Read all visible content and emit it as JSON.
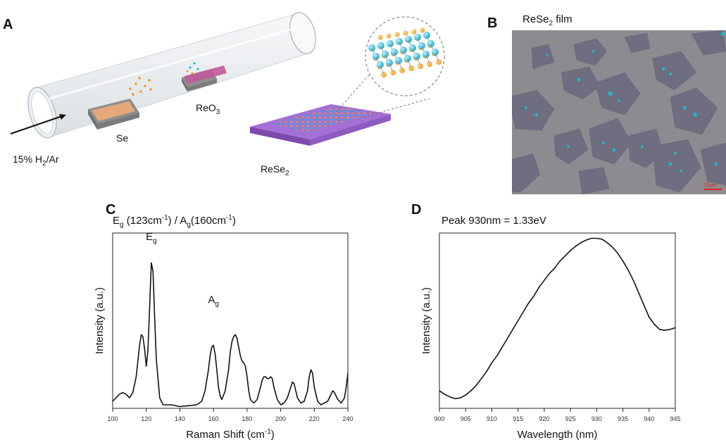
{
  "panels": {
    "a": {
      "letter": "A",
      "labels": {
        "gas": "15% H",
        "gas_sub": "2",
        "gas_rest": "/Ar",
        "se": "Se",
        "reo": "ReO",
        "reo_sub": "3",
        "rese": "ReSe",
        "rese_sub": "2"
      }
    },
    "b": {
      "letter": "B",
      "title_main": "ReSe",
      "title_sub": "2",
      "title_rest": " film",
      "scalebar": "20μm"
    },
    "c": {
      "letter": "C"
    },
    "d": {
      "letter": "D"
    }
  },
  "chart_data": [
    {
      "type": "line",
      "panel": "C",
      "title_parts": [
        "E",
        "g",
        " (123cm",
        "-1",
        ") / A",
        "g",
        "(160cm",
        "-1",
        ")"
      ],
      "xlabel": "Raman Shift (cm",
      "xlabel_sup": "-1",
      "xlabel_end": ")",
      "ylabel": "Intensity (a.u.)",
      "xlim": [
        100,
        240
      ],
      "ylim": [
        0,
        1
      ],
      "xticks": [
        100,
        120,
        140,
        160,
        180,
        200,
        220,
        240
      ],
      "annotations": [
        {
          "text": "E",
          "sub": "g",
          "x": 123,
          "y": 0.96
        },
        {
          "text": "A",
          "sub": "g",
          "x": 160,
          "y": 0.6
        }
      ],
      "series": [
        {
          "x": [
            100,
            104,
            106,
            108,
            110,
            112,
            114,
            116,
            117,
            118,
            119,
            120,
            121,
            122,
            123,
            124,
            125,
            126,
            128,
            130,
            135,
            140,
            145,
            150,
            153,
            155,
            157,
            158,
            159,
            160,
            161,
            162,
            163,
            164,
            165,
            167,
            169,
            170,
            171,
            172,
            173,
            174,
            175,
            176,
            177,
            178,
            179,
            180,
            181,
            182,
            184,
            186,
            188,
            189,
            190,
            191,
            192,
            193,
            194,
            195,
            196,
            198,
            200,
            202,
            204,
            206,
            207,
            208,
            209,
            210,
            212,
            214,
            216,
            217,
            218,
            219,
            220,
            222,
            224,
            226,
            228,
            230,
            231,
            232,
            234,
            236,
            238,
            239,
            240
          ],
          "y": [
            0.04,
            0.08,
            0.09,
            0.08,
            0.06,
            0.09,
            0.18,
            0.36,
            0.42,
            0.41,
            0.34,
            0.24,
            0.33,
            0.58,
            0.83,
            0.78,
            0.52,
            0.28,
            0.06,
            0.02,
            0.02,
            0.01,
            0.015,
            0.02,
            0.04,
            0.1,
            0.22,
            0.3,
            0.35,
            0.36,
            0.31,
            0.22,
            0.12,
            0.07,
            0.05,
            0.1,
            0.22,
            0.32,
            0.38,
            0.41,
            0.42,
            0.4,
            0.35,
            0.3,
            0.27,
            0.26,
            0.24,
            0.18,
            0.1,
            0.05,
            0.03,
            0.05,
            0.12,
            0.16,
            0.18,
            0.18,
            0.17,
            0.17,
            0.18,
            0.17,
            0.12,
            0.05,
            0.02,
            0.03,
            0.06,
            0.12,
            0.15,
            0.14,
            0.1,
            0.06,
            0.03,
            0.04,
            0.1,
            0.18,
            0.22,
            0.2,
            0.12,
            0.04,
            0.02,
            0.03,
            0.04,
            0.08,
            0.1,
            0.09,
            0.05,
            0.03,
            0.06,
            0.12,
            0.2
          ]
        }
      ]
    },
    {
      "type": "line",
      "panel": "D",
      "title": "Peak 930nm = 1.33eV",
      "xlabel": "Wavelength (nm)",
      "ylabel": "Intensity (a.u.)",
      "xlim": [
        900,
        945
      ],
      "ylim": [
        0,
        1
      ],
      "xticks": [
        900,
        905,
        910,
        915,
        920,
        925,
        930,
        935,
        940,
        945
      ],
      "series": [
        {
          "x": [
            900,
            901,
            902,
            903,
            904,
            905,
            906,
            907,
            908,
            909,
            910,
            911,
            912,
            913,
            914,
            915,
            916,
            917,
            918,
            919,
            920,
            921,
            922,
            923,
            924,
            925,
            926,
            927,
            928,
            929,
            930,
            931,
            932,
            933,
            934,
            935,
            936,
            937,
            938,
            939,
            940,
            941,
            942,
            943,
            944,
            945
          ],
          "y": [
            0.1,
            0.08,
            0.065,
            0.055,
            0.06,
            0.075,
            0.1,
            0.13,
            0.17,
            0.21,
            0.26,
            0.3,
            0.35,
            0.4,
            0.45,
            0.5,
            0.55,
            0.6,
            0.64,
            0.69,
            0.73,
            0.77,
            0.8,
            0.84,
            0.87,
            0.9,
            0.925,
            0.945,
            0.96,
            0.97,
            0.97,
            0.965,
            0.945,
            0.92,
            0.885,
            0.84,
            0.79,
            0.73,
            0.66,
            0.59,
            0.52,
            0.48,
            0.45,
            0.445,
            0.45,
            0.46
          ]
        }
      ]
    }
  ]
}
